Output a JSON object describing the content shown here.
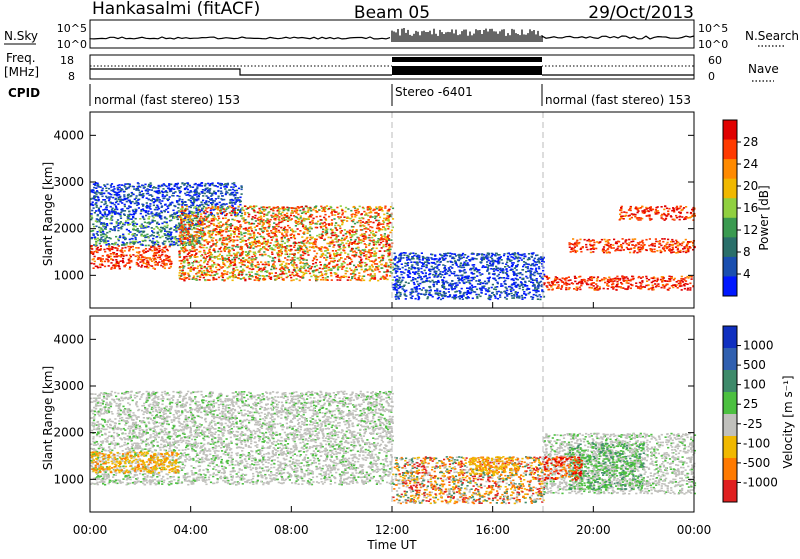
{
  "header": {
    "site": "Hankasalmi (fitACF)",
    "beam": "Beam 05",
    "date": "29/Oct/2013"
  },
  "nsky_panel": {
    "left_label": "N.Sky",
    "left_top_tick": "10^5",
    "left_bottom_tick": "10^0",
    "right_top_tick": "10^5",
    "right_bottom_tick": "10^0",
    "right_label": "N.Search"
  },
  "freq_panel": {
    "left_label_1": "Freq.",
    "left_label_2": "[MHz]",
    "left_top_tick": "18",
    "left_bottom_tick": "8",
    "right_top_tick": "60",
    "right_bottom_tick": "0",
    "right_label": "Nave"
  },
  "cpid_panel": {
    "label": "CPID",
    "segments": [
      {
        "text": "normal (fast stereo) 153",
        "start_hour": 0,
        "end_hour": 12
      },
      {
        "text": "Stereo -6401",
        "start_hour": 12,
        "end_hour": 18
      },
      {
        "text": "normal (fast stereo) 153",
        "start_hour": 18,
        "end_hour": 24
      }
    ]
  },
  "time_axis": {
    "label": "Time UT",
    "ticks": [
      "00:00",
      "04:00",
      "08:00",
      "12:00",
      "16:00",
      "20:00",
      "00:00"
    ]
  },
  "power_colorbar": {
    "label": "Power [dB]",
    "ticks": [
      "28",
      "24",
      "20",
      "16",
      "12",
      "8",
      "4"
    ],
    "colors": [
      "#e00000",
      "#ff3a00",
      "#ff8a00",
      "#f0b800",
      "#90d040",
      "#3a9a50",
      "#2a6f6a",
      "#1a4fb0",
      "#0018ff"
    ]
  },
  "velocity_colorbar": {
    "label": "Velocity [m s⁻¹]",
    "ticks": [
      "1000",
      "500",
      "100",
      "25",
      "-25",
      "-100",
      "-500",
      "-1000"
    ],
    "colors": [
      "#1030c0",
      "#3060b0",
      "#3e8a6a",
      "#4cc040",
      "#c0c0bc",
      "#f0b800",
      "#ff7a00",
      "#e02020"
    ]
  },
  "chart_data": [
    {
      "type": "heatmap",
      "title": "Power",
      "xlabel": "",
      "ylabel": "Slant Range [km]",
      "xlim": [
        0,
        24
      ],
      "ylim": [
        300,
        4500
      ],
      "yticks": [
        "4000",
        "3000",
        "2000",
        "1000"
      ],
      "legend": "right",
      "series": [
        {
          "start_hour": 0,
          "end_hour": 3.2,
          "min_km": 1150,
          "max_km": 1650,
          "level": "red"
        },
        {
          "start_hour": 0,
          "end_hour": 4.5,
          "min_km": 1650,
          "max_km": 2300,
          "level": "blue-green"
        },
        {
          "start_hour": 0,
          "end_hour": 6.0,
          "min_km": 2300,
          "max_km": 3000,
          "level": "blue"
        },
        {
          "start_hour": 3.5,
          "end_hour": 12,
          "min_km": 900,
          "max_km": 2500,
          "level": "red-orange"
        },
        {
          "start_hour": 12,
          "end_hour": 18,
          "min_km": 500,
          "max_km": 1500,
          "level": "blue"
        },
        {
          "start_hour": 18,
          "end_hour": 24,
          "min_km": 700,
          "max_km": 1000,
          "level": "red"
        },
        {
          "start_hour": 19,
          "end_hour": 24,
          "min_km": 1500,
          "max_km": 1800,
          "level": "red"
        },
        {
          "start_hour": 21,
          "end_hour": 24,
          "min_km": 2200,
          "max_km": 2500,
          "level": "red"
        }
      ]
    },
    {
      "type": "heatmap",
      "title": "Velocity",
      "xlabel": "Time UT",
      "ylabel": "Slant Range [km]",
      "xlim": [
        0,
        24
      ],
      "ylim": [
        300,
        4500
      ],
      "yticks": [
        "4000",
        "3000",
        "2000",
        "1000"
      ],
      "legend": "right",
      "series": [
        {
          "start_hour": 0,
          "end_hour": 12,
          "min_km": 900,
          "max_km": 2900,
          "level": "grey"
        },
        {
          "start_hour": 0,
          "end_hour": 3.5,
          "min_km": 1150,
          "max_km": 1600,
          "level": "orange"
        },
        {
          "start_hour": 12,
          "end_hour": 18,
          "min_km": 500,
          "max_km": 1500,
          "level": "mixed"
        },
        {
          "start_hour": 15,
          "end_hour": 17,
          "min_km": 1100,
          "max_km": 1500,
          "level": "orange"
        },
        {
          "start_hour": 18,
          "end_hour": 24,
          "min_km": 700,
          "max_km": 2000,
          "level": "grey"
        },
        {
          "start_hour": 19,
          "end_hour": 22,
          "min_km": 800,
          "max_km": 1800,
          "level": "green"
        },
        {
          "start_hour": 18,
          "end_hour": 19.5,
          "min_km": 1000,
          "max_km": 1500,
          "level": "red"
        }
      ]
    }
  ]
}
